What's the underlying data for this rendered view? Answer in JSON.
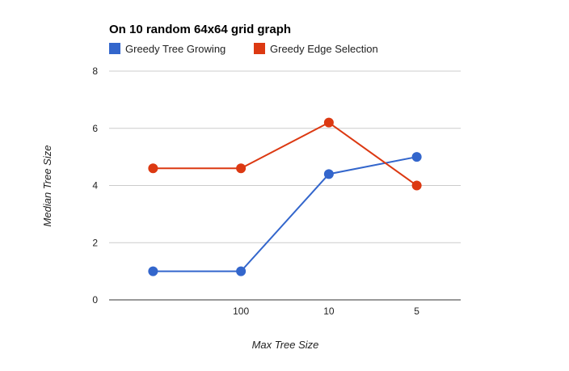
{
  "chart_data": {
    "type": "line",
    "title": "On 10 random 64x64 grid graph",
    "xlabel": "Max Tree Size",
    "ylabel": "Median Tree Size",
    "categories": [
      "",
      "100",
      "10",
      "5"
    ],
    "ylim": [
      0,
      8
    ],
    "yticks": [
      0,
      2,
      4,
      6,
      8
    ],
    "grid": true,
    "legend_position": "top",
    "series": [
      {
        "name": "Greedy Tree Growing",
        "color": "#3366cc",
        "values": [
          1,
          1,
          4.4,
          5
        ]
      },
      {
        "name": "Greedy Edge Selection",
        "color": "#dc3912",
        "values": [
          4.6,
          4.6,
          6.2,
          4
        ]
      }
    ]
  }
}
